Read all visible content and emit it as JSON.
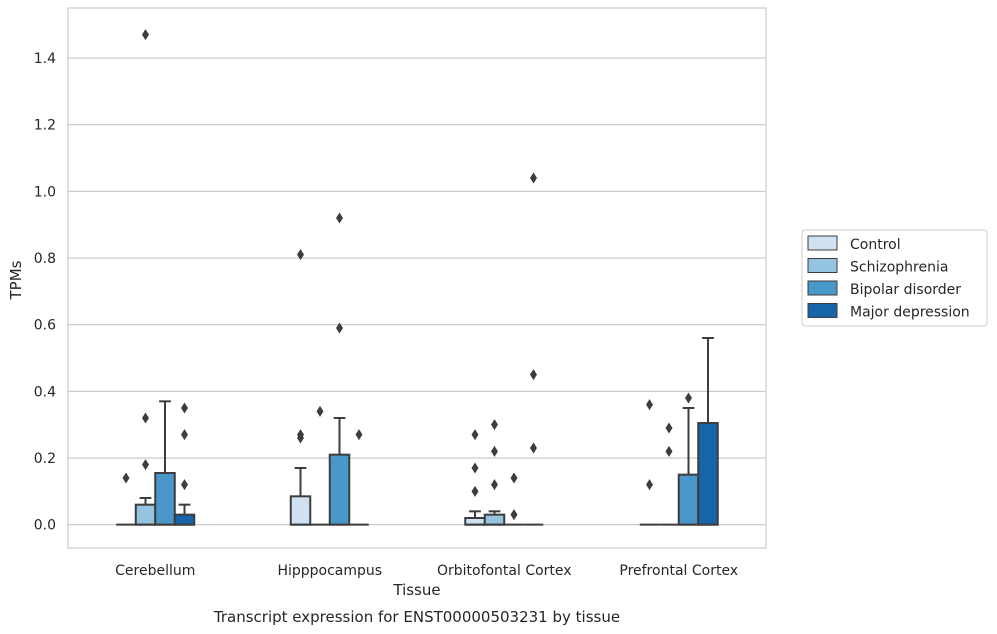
{
  "chart_data": {
    "type": "boxplot",
    "xlabel": "Tissue",
    "ylabel": "TPMs",
    "caption": "Transcript expression for ENST00000503231 by tissue",
    "ylim": [
      -0.07,
      1.55
    ],
    "yticks": [
      0.0,
      0.2,
      0.4,
      0.6,
      0.8,
      1.0,
      1.2,
      1.4
    ],
    "ytick_labels": [
      "0.0",
      "0.2",
      "0.4",
      "0.6",
      "0.8",
      "1.0",
      "1.2",
      "1.4"
    ],
    "grid": "horizontal",
    "legend_position": "right",
    "categories": [
      "Cerebellum",
      "Hipppocampus",
      "Orbitofontal Cortex",
      "Prefrontal Cortex"
    ],
    "series": [
      {
        "name": "Control",
        "color": "#d0e1f2",
        "boxes": [
          {
            "q1": 0,
            "median": 0,
            "q3": 0,
            "whisker_low": 0,
            "whisker_high": 0,
            "outliers": [
              0.14
            ]
          },
          {
            "q1": 0,
            "median": 0,
            "q3": 0.085,
            "whisker_low": 0,
            "whisker_high": 0.17,
            "outliers": [
              0.26,
              0.27,
              0.81
            ]
          },
          {
            "q1": 0,
            "median": 0,
            "q3": 0.02,
            "whisker_low": 0,
            "whisker_high": 0.04,
            "outliers": [
              0.1,
              0.17,
              0.27
            ]
          },
          {
            "q1": 0,
            "median": 0,
            "q3": 0,
            "whisker_low": 0,
            "whisker_high": 0,
            "outliers": [
              0.12,
              0.36
            ]
          }
        ]
      },
      {
        "name": "Schizophrenia",
        "color": "#94c4df",
        "boxes": [
          {
            "q1": 0,
            "median": 0,
            "q3": 0.06,
            "whisker_low": 0,
            "whisker_high": 0.08,
            "outliers": [
              0.18,
              0.32,
              1.47
            ]
          },
          {
            "q1": 0,
            "median": 0,
            "q3": 0,
            "whisker_low": 0,
            "whisker_high": 0,
            "outliers": [
              0.34
            ]
          },
          {
            "q1": 0,
            "median": 0,
            "q3": 0.03,
            "whisker_low": 0,
            "whisker_high": 0.04,
            "outliers": [
              0.12,
              0.22,
              0.3
            ]
          },
          {
            "q1": 0,
            "median": 0,
            "q3": 0,
            "whisker_low": 0,
            "whisker_high": 0,
            "outliers": [
              0.22,
              0.29
            ]
          }
        ]
      },
      {
        "name": "Bipolar disorder",
        "color": "#4a98c9",
        "boxes": [
          {
            "q1": 0,
            "median": 0,
            "q3": 0.155,
            "whisker_low": 0,
            "whisker_high": 0.37,
            "outliers": []
          },
          {
            "q1": 0,
            "median": 0,
            "q3": 0.21,
            "whisker_low": 0,
            "whisker_high": 0.32,
            "outliers": [
              0.59,
              0.92
            ]
          },
          {
            "q1": 0,
            "median": 0,
            "q3": 0,
            "whisker_low": 0,
            "whisker_high": 0,
            "outliers": [
              0.03,
              0.14
            ]
          },
          {
            "q1": 0,
            "median": 0,
            "q3": 0.15,
            "whisker_low": 0,
            "whisker_high": 0.35,
            "outliers": [
              0.38
            ]
          }
        ]
      },
      {
        "name": "Major depression",
        "color": "#1764ab",
        "boxes": [
          {
            "q1": 0,
            "median": 0,
            "q3": 0.03,
            "whisker_low": 0,
            "whisker_high": 0.06,
            "outliers": [
              0.12,
              0.27,
              0.35
            ]
          },
          {
            "q1": 0,
            "median": 0,
            "q3": 0,
            "whisker_low": 0,
            "whisker_high": 0,
            "outliers": [
              0.27
            ]
          },
          {
            "q1": 0,
            "median": 0,
            "q3": 0,
            "whisker_low": 0,
            "whisker_high": 0,
            "outliers": [
              0.23,
              0.45,
              1.04
            ]
          },
          {
            "q1": 0,
            "median": 0,
            "q3": 0.305,
            "whisker_low": 0,
            "whisker_high": 0.56,
            "outliers": []
          }
        ]
      }
    ]
  }
}
